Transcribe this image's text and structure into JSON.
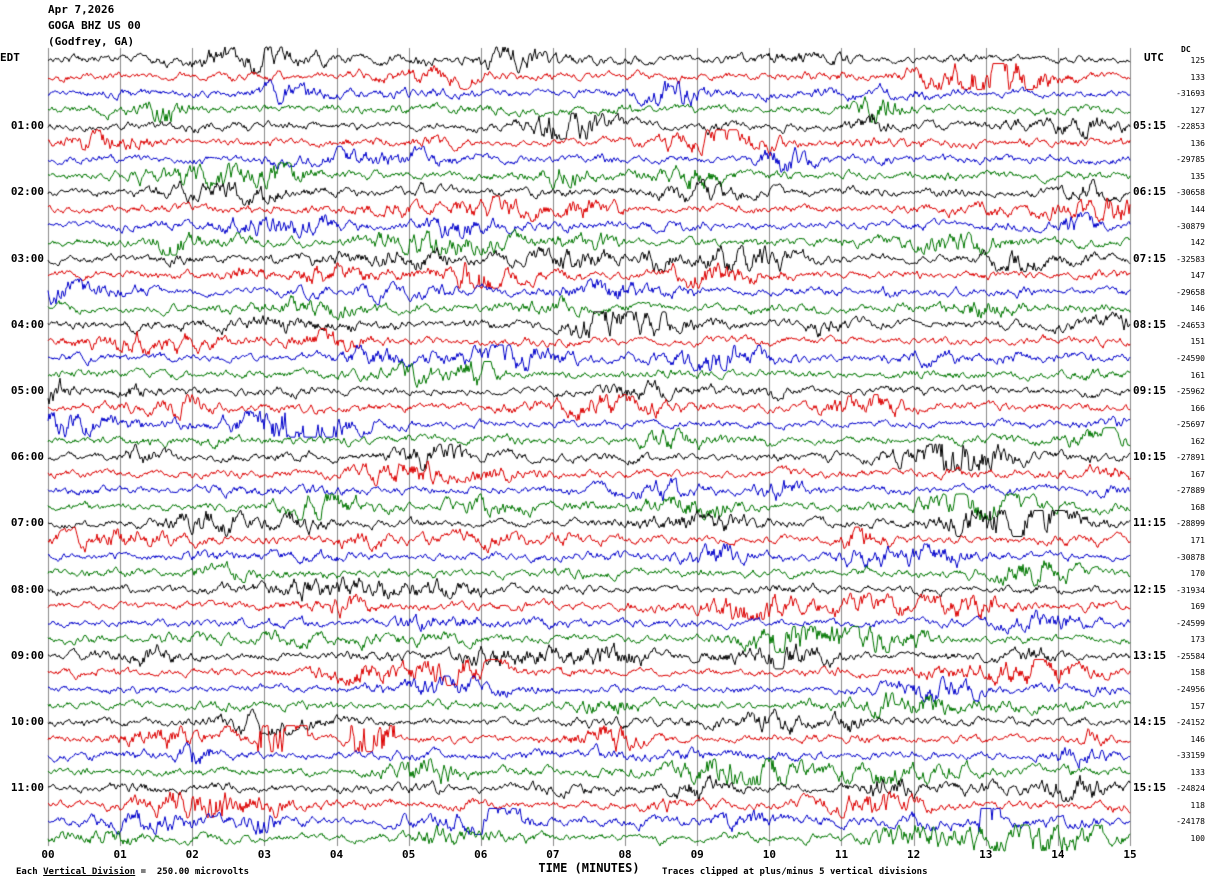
{
  "header": {
    "date": "Apr 7,2026",
    "station": "GOGA BHZ US 00",
    "location": "(Godfrey, GA)"
  },
  "axis": {
    "left_zone": "EDT",
    "right_zone": "UTC",
    "dc_header": "DC",
    "x_label": "TIME (MINUTES)"
  },
  "left_times": [
    "01:00",
    "02:00",
    "03:00",
    "04:00",
    "05:00",
    "06:00",
    "07:00",
    "08:00",
    "09:00",
    "10:00",
    "11:00"
  ],
  "right_times": [
    "05:15",
    "06:15",
    "07:15",
    "08:15",
    "09:15",
    "10:15",
    "11:15",
    "12:15",
    "13:15",
    "14:15",
    "15:15"
  ],
  "right_numbers": [
    "125",
    "133",
    "-31693",
    "127",
    "-22853",
    "136",
    "-29785",
    "135",
    "-30658",
    "144",
    "-30879",
    "142",
    "-32583",
    "147",
    "-29658",
    "146",
    "-24653",
    "151",
    "-24590",
    "161",
    "-25962",
    "166",
    "-25697",
    "162",
    "-27891",
    "167",
    "-27889",
    "168",
    "-28899",
    "171",
    "-30878",
    "170",
    "-31934",
    "169",
    "-24599",
    "173",
    "-25584",
    "158",
    "-24956",
    "157",
    "-24152",
    "146",
    "-33159",
    "133",
    "-24824",
    "118",
    "-24178",
    "100",
    ""
  ],
  "x_ticks": [
    "00",
    "01",
    "02",
    "03",
    "04",
    "05",
    "06",
    "07",
    "08",
    "09",
    "10",
    "11",
    "12",
    "13",
    "14",
    "15"
  ],
  "footer": {
    "left_pre": "Each ",
    "left_underlined": "Vertical Division",
    "left_post": " =  250.00 microvolts",
    "right": "Traces clipped at plus/minus 5 vertical divisions"
  },
  "colors": {
    "trace_cycle": [
      "#000000",
      "#dd0000",
      "#0000cc",
      "#007700"
    ],
    "grid": "#8a8a8a",
    "text": "#000000"
  },
  "chart_data": {
    "type": "line",
    "subtype": "helicorder_seismogram",
    "title": "GOGA BHZ US 00 (Godfrey, GA) — Apr 7,2026",
    "xlabel": "TIME (MINUTES)",
    "x_range_minutes": [
      0,
      15
    ],
    "rows": 48,
    "minutes_per_row": 15,
    "row_start_edt_first": "00:00",
    "hour_labels_edt": [
      "01:00",
      "02:00",
      "03:00",
      "04:00",
      "05:00",
      "06:00",
      "07:00",
      "08:00",
      "09:00",
      "10:00",
      "11:00"
    ],
    "hour_labels_utc": [
      "05:15",
      "06:15",
      "07:15",
      "08:15",
      "09:15",
      "10:15",
      "11:15",
      "12:15",
      "13:15",
      "14:15",
      "15:15"
    ],
    "trace_color_cycle": [
      "black",
      "red",
      "blue",
      "green"
    ],
    "row_dc_offsets": [
      "125",
      "133",
      "-31693",
      "127",
      "-22853",
      "136",
      "-29785",
      "135",
      "-30658",
      "144",
      "-30879",
      "142",
      "-32583",
      "147",
      "-29658",
      "146",
      "-24653",
      "151",
      "-24590",
      "161",
      "-25962",
      "166",
      "-25697",
      "162",
      "-27891",
      "167",
      "-27889",
      "168",
      "-28899",
      "171",
      "-30878",
      "170",
      "-31934",
      "169",
      "-24599",
      "173",
      "-25584",
      "158",
      "-24956",
      "157",
      "-24152",
      "146",
      "-33159",
      "133",
      "-24824",
      "118",
      "-24178",
      "100",
      ""
    ],
    "scale": "Each Vertical Division =  250.00 microvolts",
    "clipping": "Traces clipped at plus/minus 5 vertical divisions",
    "notable_events": [
      {
        "row_index": 41,
        "trace_color": "red",
        "edt_row_start": "10:15",
        "minute_range": [
          2.9,
          3.6
        ],
        "description": "large clipped burst"
      },
      {
        "row_index": 41,
        "trace_color": "red",
        "edt_row_start": "10:15",
        "minute_range": [
          4.2,
          4.8
        ],
        "description": "second clipped burst"
      },
      {
        "row_index": 46,
        "trace_color": "blue",
        "edt_row_start": "11:30",
        "minute_range": [
          12.9,
          13.2
        ],
        "description": "brief spike"
      }
    ],
    "waveform_note": "continuous background microseism noise on all 48 traces; exact sample values not recoverable from raster"
  }
}
